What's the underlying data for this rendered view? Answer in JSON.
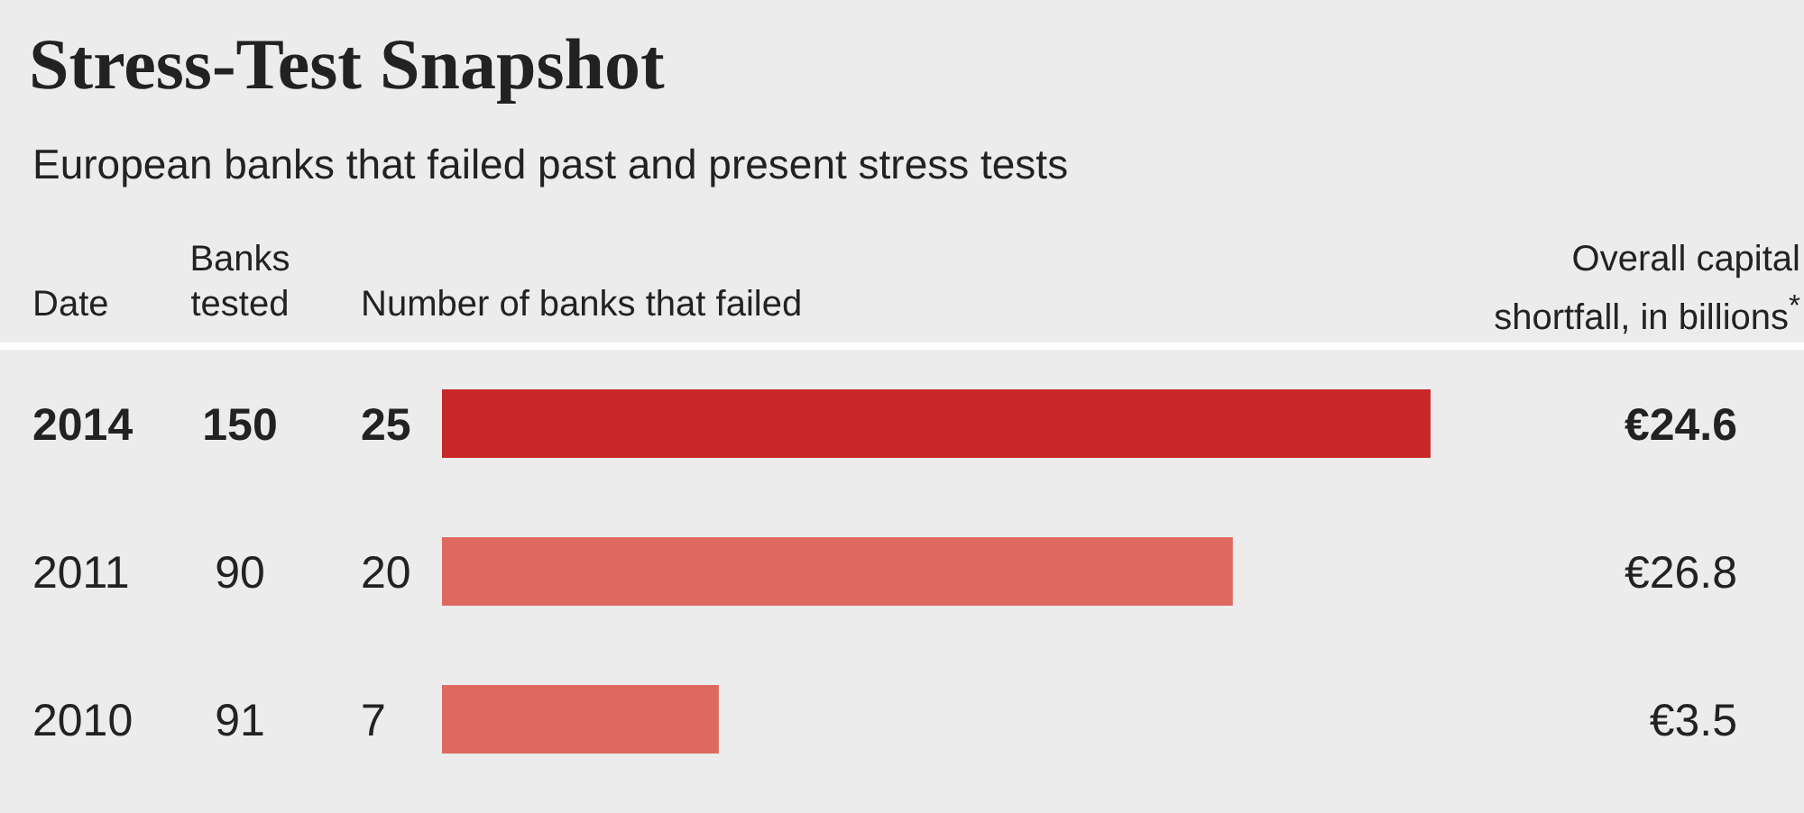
{
  "chart_data": {
    "type": "bar",
    "orientation": "horizontal",
    "title": "Stress-Test Snapshot",
    "subtitle": "European banks that failed past and present stress tests",
    "ylabel": "Date",
    "xlabel": "Number of banks that failed",
    "categories": [
      "2014",
      "2011",
      "2010"
    ],
    "series": [
      {
        "values": [
          25,
          20,
          7
        ],
        "colors": [
          "#c8282a",
          "#de6a5f",
          "#de6a5f"
        ]
      }
    ],
    "data_labels": true,
    "tick_labels": "y",
    "annotations": [
      "Banks tested",
      "Overall capital shortfall, in billions$^{*}$",
      "150",
      "€24.6",
      "90",
      "€26.8",
      "91",
      "€3.5"
    ]
  }
}
